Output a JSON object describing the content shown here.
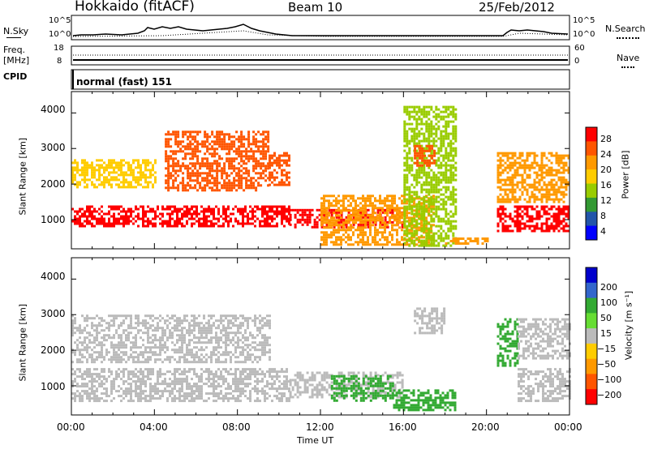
{
  "header": {
    "station": "Hokkaido (fitACF)",
    "beam": "Beam 10",
    "date": "25/Feb/2012"
  },
  "strip": {
    "nsky_label": "N.Sky",
    "nsearch_label": "N.Search",
    "nsky_ticks": [
      "10^5",
      "10^0"
    ],
    "nsearch_ticks": [
      "10^5",
      "10^0"
    ],
    "freq_label_1": "Freq.",
    "freq_label_2": "[MHz]",
    "freq_ticks": [
      "18",
      "8"
    ],
    "nave_label": "Nave",
    "nave_ticks": [
      "60",
      "0"
    ],
    "cpid_label": "CPID",
    "cpid_value": "normal (fast) 151"
  },
  "panels": {
    "y_label": "Slant Range [km]",
    "y_ticks": [
      "4000",
      "3000",
      "2000",
      "1000"
    ],
    "x_ticks": [
      "00:00",
      "04:00",
      "08:00",
      "12:00",
      "16:00",
      "20:00",
      "00:00"
    ],
    "x_label": "Time UT"
  },
  "colorbars": {
    "power": {
      "label": "Power [dB]",
      "ticks": [
        "28",
        "24",
        "20",
        "16",
        "12",
        "8",
        "4"
      ],
      "colors": [
        "#ff0000",
        "#ff5500",
        "#ff9900",
        "#ffcc00",
        "#99cc00",
        "#339933",
        "#2255aa",
        "#0000ff"
      ]
    },
    "velocity": {
      "label": "Velocity [m s⁻¹]",
      "ticks": [
        "200",
        "100",
        "50",
        "15",
        "−15",
        "−50",
        "−100",
        "−200"
      ],
      "colors": [
        "#0000cc",
        "#3366cc",
        "#33aa33",
        "#66dd33",
        "#bbbbbb",
        "#ffcc00",
        "#ff9900",
        "#ff5500",
        "#ff0000"
      ]
    }
  },
  "chart_data": [
    {
      "type": "heatmap",
      "title": "Power",
      "xlabel": "Time UT",
      "ylabel": "Slant Range [km]",
      "xlim": [
        "00:00",
        "24:00"
      ],
      "ylim": [
        180,
        4600
      ],
      "colorbar_label": "Power [dB]",
      "colorbar_ticks": [
        28,
        24,
        20,
        16,
        12,
        8,
        4
      ],
      "regions": [
        {
          "t": [
            0.0,
            10.5
          ],
          "range": [
            800,
            1400
          ],
          "power": 30
        },
        {
          "t": [
            0.0,
            4.0
          ],
          "range": [
            1900,
            2700
          ],
          "power": 18
        },
        {
          "t": [
            4.5,
            9.5
          ],
          "range": [
            1800,
            3500
          ],
          "power": 24
        },
        {
          "t": [
            9.5,
            10.5
          ],
          "range": [
            2000,
            2900
          ],
          "power": 26
        },
        {
          "t": [
            10.5,
            16.0
          ],
          "range": [
            800,
            1300
          ],
          "power": 28
        },
        {
          "t": [
            12.0,
            17.5
          ],
          "range": [
            300,
            1700
          ],
          "power": 22
        },
        {
          "t": [
            16.0,
            18.5
          ],
          "range": [
            300,
            4200
          ],
          "power": 12
        },
        {
          "t": [
            16.5,
            17.5
          ],
          "range": [
            2500,
            3100
          ],
          "power": 26
        },
        {
          "t": [
            18.0,
            20.0
          ],
          "range": [
            300,
            500
          ],
          "power": 22
        },
        {
          "t": [
            20.5,
            24.0
          ],
          "range": [
            700,
            1400
          ],
          "power": 30
        },
        {
          "t": [
            20.5,
            24.0
          ],
          "range": [
            1500,
            2900
          ],
          "power": 22
        }
      ]
    },
    {
      "type": "heatmap",
      "title": "Velocity",
      "xlabel": "Time UT",
      "ylabel": "Slant Range [km]",
      "xlim": [
        "00:00",
        "24:00"
      ],
      "ylim": [
        180,
        4600
      ],
      "colorbar_label": "Velocity [m s⁻¹]",
      "colorbar_ticks": [
        200,
        100,
        50,
        15,
        -15,
        -50,
        -100,
        -200
      ],
      "regions": [
        {
          "t": [
            0.0,
            10.5
          ],
          "range": [
            600,
            1500
          ],
          "velocity": 0
        },
        {
          "t": [
            0.0,
            9.5
          ],
          "range": [
            1700,
            3000
          ],
          "velocity": 0
        },
        {
          "t": [
            10.5,
            16.0
          ],
          "range": [
            700,
            1400
          ],
          "velocity": 0
        },
        {
          "t": [
            12.5,
            15.5
          ],
          "range": [
            600,
            1300
          ],
          "velocity": 60
        },
        {
          "t": [
            15.5,
            18.5
          ],
          "range": [
            300,
            900
          ],
          "velocity": 60
        },
        {
          "t": [
            16.5,
            18.0
          ],
          "range": [
            2500,
            3200
          ],
          "velocity": 0
        },
        {
          "t": [
            20.5,
            21.5
          ],
          "range": [
            1600,
            2900
          ],
          "velocity": 50
        },
        {
          "t": [
            21.5,
            24.0
          ],
          "range": [
            600,
            1500
          ],
          "velocity": 0
        },
        {
          "t": [
            21.5,
            24.0
          ],
          "range": [
            1800,
            2900
          ],
          "velocity": 0
        }
      ]
    }
  ]
}
